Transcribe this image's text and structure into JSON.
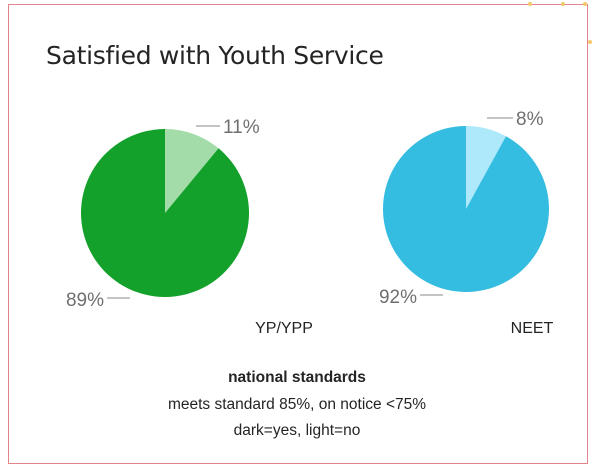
{
  "title": "Satisfied with Youth Service",
  "colors": {
    "border": "#e5838b",
    "resize_handle": "#f2c86a"
  },
  "chart_data": [
    {
      "type": "pie",
      "label": "YP/YPP",
      "slices": [
        {
          "label": "11%",
          "value": 11,
          "color": "#a3dca9",
          "meaning": "no"
        },
        {
          "label": "89%",
          "value": 89,
          "color": "#13a12b",
          "meaning": "yes"
        }
      ]
    },
    {
      "type": "pie",
      "label": "NEET",
      "slices": [
        {
          "label": "8%",
          "value": 8,
          "color": "#aee8fb",
          "meaning": "no"
        },
        {
          "label": "92%",
          "value": 92,
          "color": "#35bde1",
          "meaning": "yes"
        }
      ]
    }
  ],
  "legend_notes": {
    "heading": "national standards",
    "standard": "meets standard 85%, on notice <75%",
    "key": "dark=yes, light=no"
  }
}
